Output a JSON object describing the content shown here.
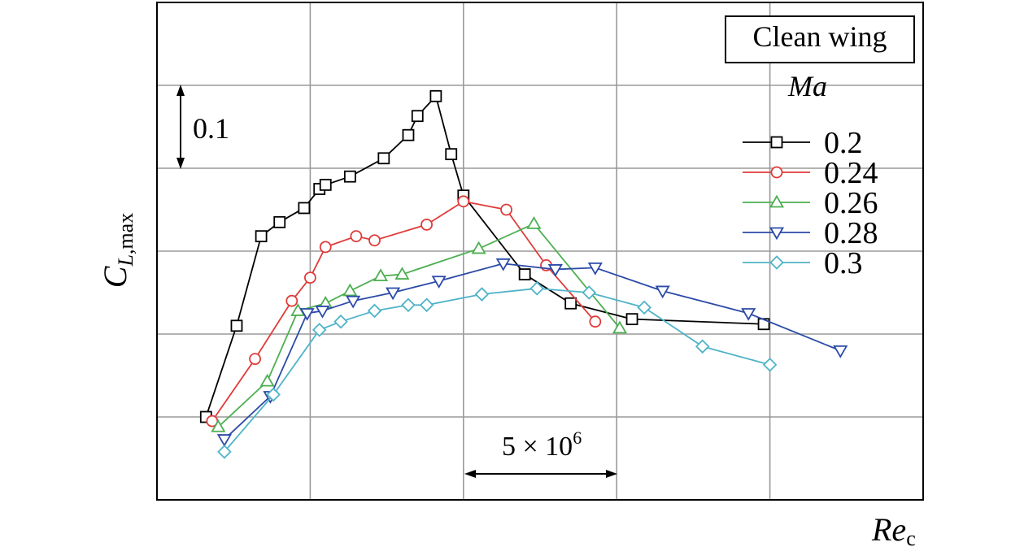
{
  "chart_data": {
    "type": "line",
    "title": "",
    "xlabel": "Re",
    "xlabel_sub": "c",
    "ylabel": "C",
    "ylabel_sub": "L,max",
    "legend_box_label": "Clean wing",
    "legend_title": "Ma",
    "legend_placement": "top-right",
    "grid": true,
    "x_unit": "Reynolds number (×10^6)",
    "y_unit": "C_L,max (relative, no absolute tick labels)",
    "xlim": [
      0,
      25
    ],
    "ylim": [
      0,
      0.6
    ],
    "scale_annotations": {
      "y_scale_text": "0.1",
      "x_scale_text_base": "5 × 10",
      "x_scale_text_exp": "6"
    },
    "series": [
      {
        "name": "0.2",
        "color": "#000000",
        "marker": "square",
        "points": [
          [
            1.6,
            0.1
          ],
          [
            2.6,
            0.21
          ],
          [
            3.4,
            0.318
          ],
          [
            4.0,
            0.335
          ],
          [
            4.8,
            0.352
          ],
          [
            5.3,
            0.375
          ],
          [
            5.5,
            0.38
          ],
          [
            6.3,
            0.39
          ],
          [
            7.4,
            0.412
          ],
          [
            8.2,
            0.44
          ],
          [
            8.5,
            0.463
          ],
          [
            9.1,
            0.487
          ],
          [
            9.6,
            0.417
          ],
          [
            10.0,
            0.367
          ],
          [
            12.0,
            0.272
          ],
          [
            13.5,
            0.237
          ],
          [
            15.5,
            0.218
          ],
          [
            19.8,
            0.212
          ]
        ]
      },
      {
        "name": "0.24",
        "color": "#e03a3a",
        "marker": "circle",
        "points": [
          [
            1.8,
            0.095
          ],
          [
            3.2,
            0.17
          ],
          [
            4.4,
            0.24
          ],
          [
            5.0,
            0.268
          ],
          [
            5.5,
            0.305
          ],
          [
            6.5,
            0.318
          ],
          [
            7.1,
            0.313
          ],
          [
            8.8,
            0.332
          ],
          [
            10.0,
            0.36
          ],
          [
            11.4,
            0.35
          ],
          [
            12.7,
            0.283
          ],
          [
            14.3,
            0.215
          ]
        ]
      },
      {
        "name": "0.26",
        "color": "#4caf50",
        "marker": "triangle-up",
        "points": [
          [
            2.0,
            0.088
          ],
          [
            3.6,
            0.143
          ],
          [
            4.6,
            0.228
          ],
          [
            5.5,
            0.237
          ],
          [
            6.3,
            0.252
          ],
          [
            7.3,
            0.27
          ],
          [
            8.0,
            0.272
          ],
          [
            10.5,
            0.303
          ],
          [
            12.3,
            0.333
          ],
          [
            15.1,
            0.207
          ]
        ]
      },
      {
        "name": "0.28",
        "color": "#2b4aa8",
        "marker": "triangle-down",
        "points": [
          [
            2.2,
            0.073
          ],
          [
            3.7,
            0.125
          ],
          [
            4.9,
            0.225
          ],
          [
            5.4,
            0.228
          ],
          [
            6.4,
            0.24
          ],
          [
            7.7,
            0.25
          ],
          [
            9.2,
            0.264
          ],
          [
            11.3,
            0.285
          ],
          [
            13.0,
            0.278
          ],
          [
            14.3,
            0.28
          ],
          [
            16.5,
            0.252
          ],
          [
            19.3,
            0.225
          ],
          [
            22.3,
            0.18
          ]
        ]
      },
      {
        "name": "0.3",
        "color": "#4fb3c8",
        "marker": "diamond",
        "points": [
          [
            2.2,
            0.058
          ],
          [
            3.8,
            0.127
          ],
          [
            5.3,
            0.205
          ],
          [
            6.0,
            0.215
          ],
          [
            7.1,
            0.228
          ],
          [
            8.2,
            0.235
          ],
          [
            8.8,
            0.235
          ],
          [
            10.6,
            0.248
          ],
          [
            12.4,
            0.255
          ],
          [
            14.1,
            0.25
          ],
          [
            15.9,
            0.232
          ],
          [
            17.8,
            0.185
          ],
          [
            20.0,
            0.163
          ]
        ]
      }
    ]
  }
}
